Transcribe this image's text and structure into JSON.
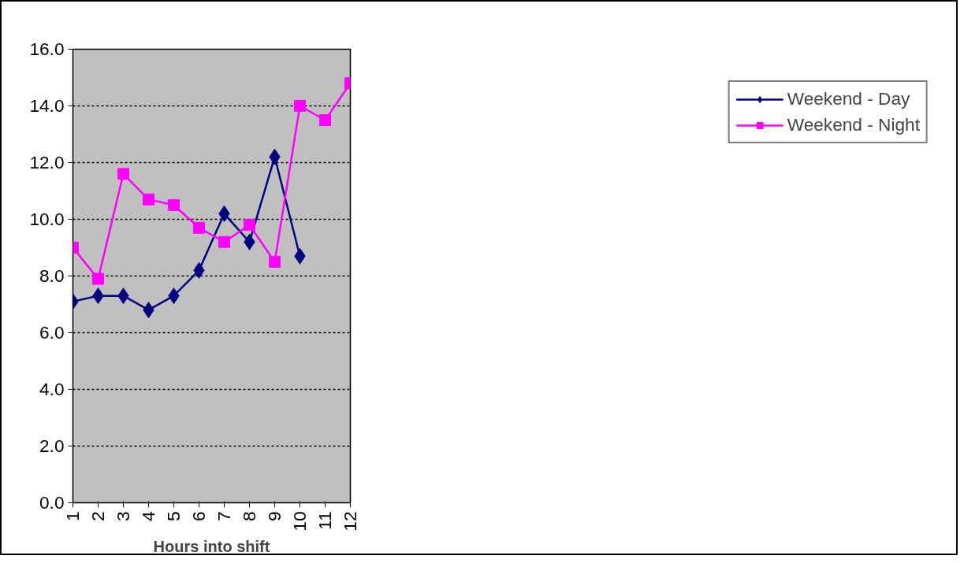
{
  "chart_data": {
    "type": "line",
    "xlabel": "Hours into shift",
    "categories": [
      "1",
      "2",
      "3",
      "4",
      "5",
      "6",
      "7",
      "8",
      "9",
      "10",
      "11",
      "12"
    ],
    "series": [
      {
        "name": "Weekend - Day",
        "color": "#000080",
        "marker": "diamond",
        "values": [
          7.1,
          7.3,
          7.3,
          6.8,
          7.3,
          8.2,
          10.2,
          9.2,
          12.2,
          8.7,
          null,
          null
        ]
      },
      {
        "name": "Weekend - Night",
        "color": "#ff00ff",
        "marker": "square",
        "values": [
          9.0,
          7.9,
          11.6,
          10.7,
          10.5,
          9.7,
          9.2,
          9.8,
          8.5,
          14.0,
          13.5,
          14.8
        ]
      }
    ],
    "ylim": [
      0,
      16
    ],
    "yticks": [
      {
        "value": 0,
        "label": "0.0"
      },
      {
        "value": 2,
        "label": "2.0"
      },
      {
        "value": 4,
        "label": "4.0"
      },
      {
        "value": 6,
        "label": "6.0"
      },
      {
        "value": 8,
        "label": "8.0"
      },
      {
        "value": 10,
        "label": "10.0"
      },
      {
        "value": 12,
        "label": "12.0"
      },
      {
        "value": 14,
        "label": "14.0"
      },
      {
        "value": 16,
        "label": "16.0"
      }
    ],
    "grid": "y",
    "legend": "right",
    "line_style": "solid"
  }
}
